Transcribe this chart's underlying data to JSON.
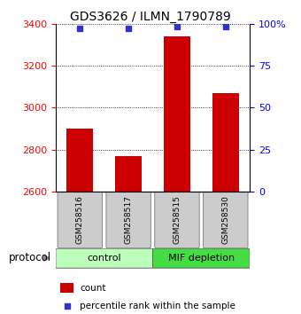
{
  "title": "GDS3626 / ILMN_1790789",
  "samples": [
    "GSM258516",
    "GSM258517",
    "GSM258515",
    "GSM258530"
  ],
  "counts": [
    2900,
    2770,
    3340,
    3070
  ],
  "percentile_ranks": [
    97,
    97,
    98,
    98
  ],
  "ylim_left": [
    2600,
    3400
  ],
  "ylim_right": [
    0,
    100
  ],
  "yticks_left": [
    2600,
    2800,
    3000,
    3200,
    3400
  ],
  "yticks_right": [
    0,
    25,
    50,
    75,
    100
  ],
  "ytick_labels_right": [
    "0",
    "25",
    "50",
    "75",
    "100%"
  ],
  "bar_color": "#cc0000",
  "dot_color": "#3333cc",
  "group_control_color": "#bbffbb",
  "group_mif_color": "#44dd44",
  "sample_box_color": "#cccccc",
  "protocol_label": "protocol",
  "legend_count_label": "count",
  "legend_pct_label": "percentile rank within the sample",
  "title_fontsize": 10,
  "tick_fontsize": 8,
  "label_fontsize": 7,
  "bar_width": 0.55
}
